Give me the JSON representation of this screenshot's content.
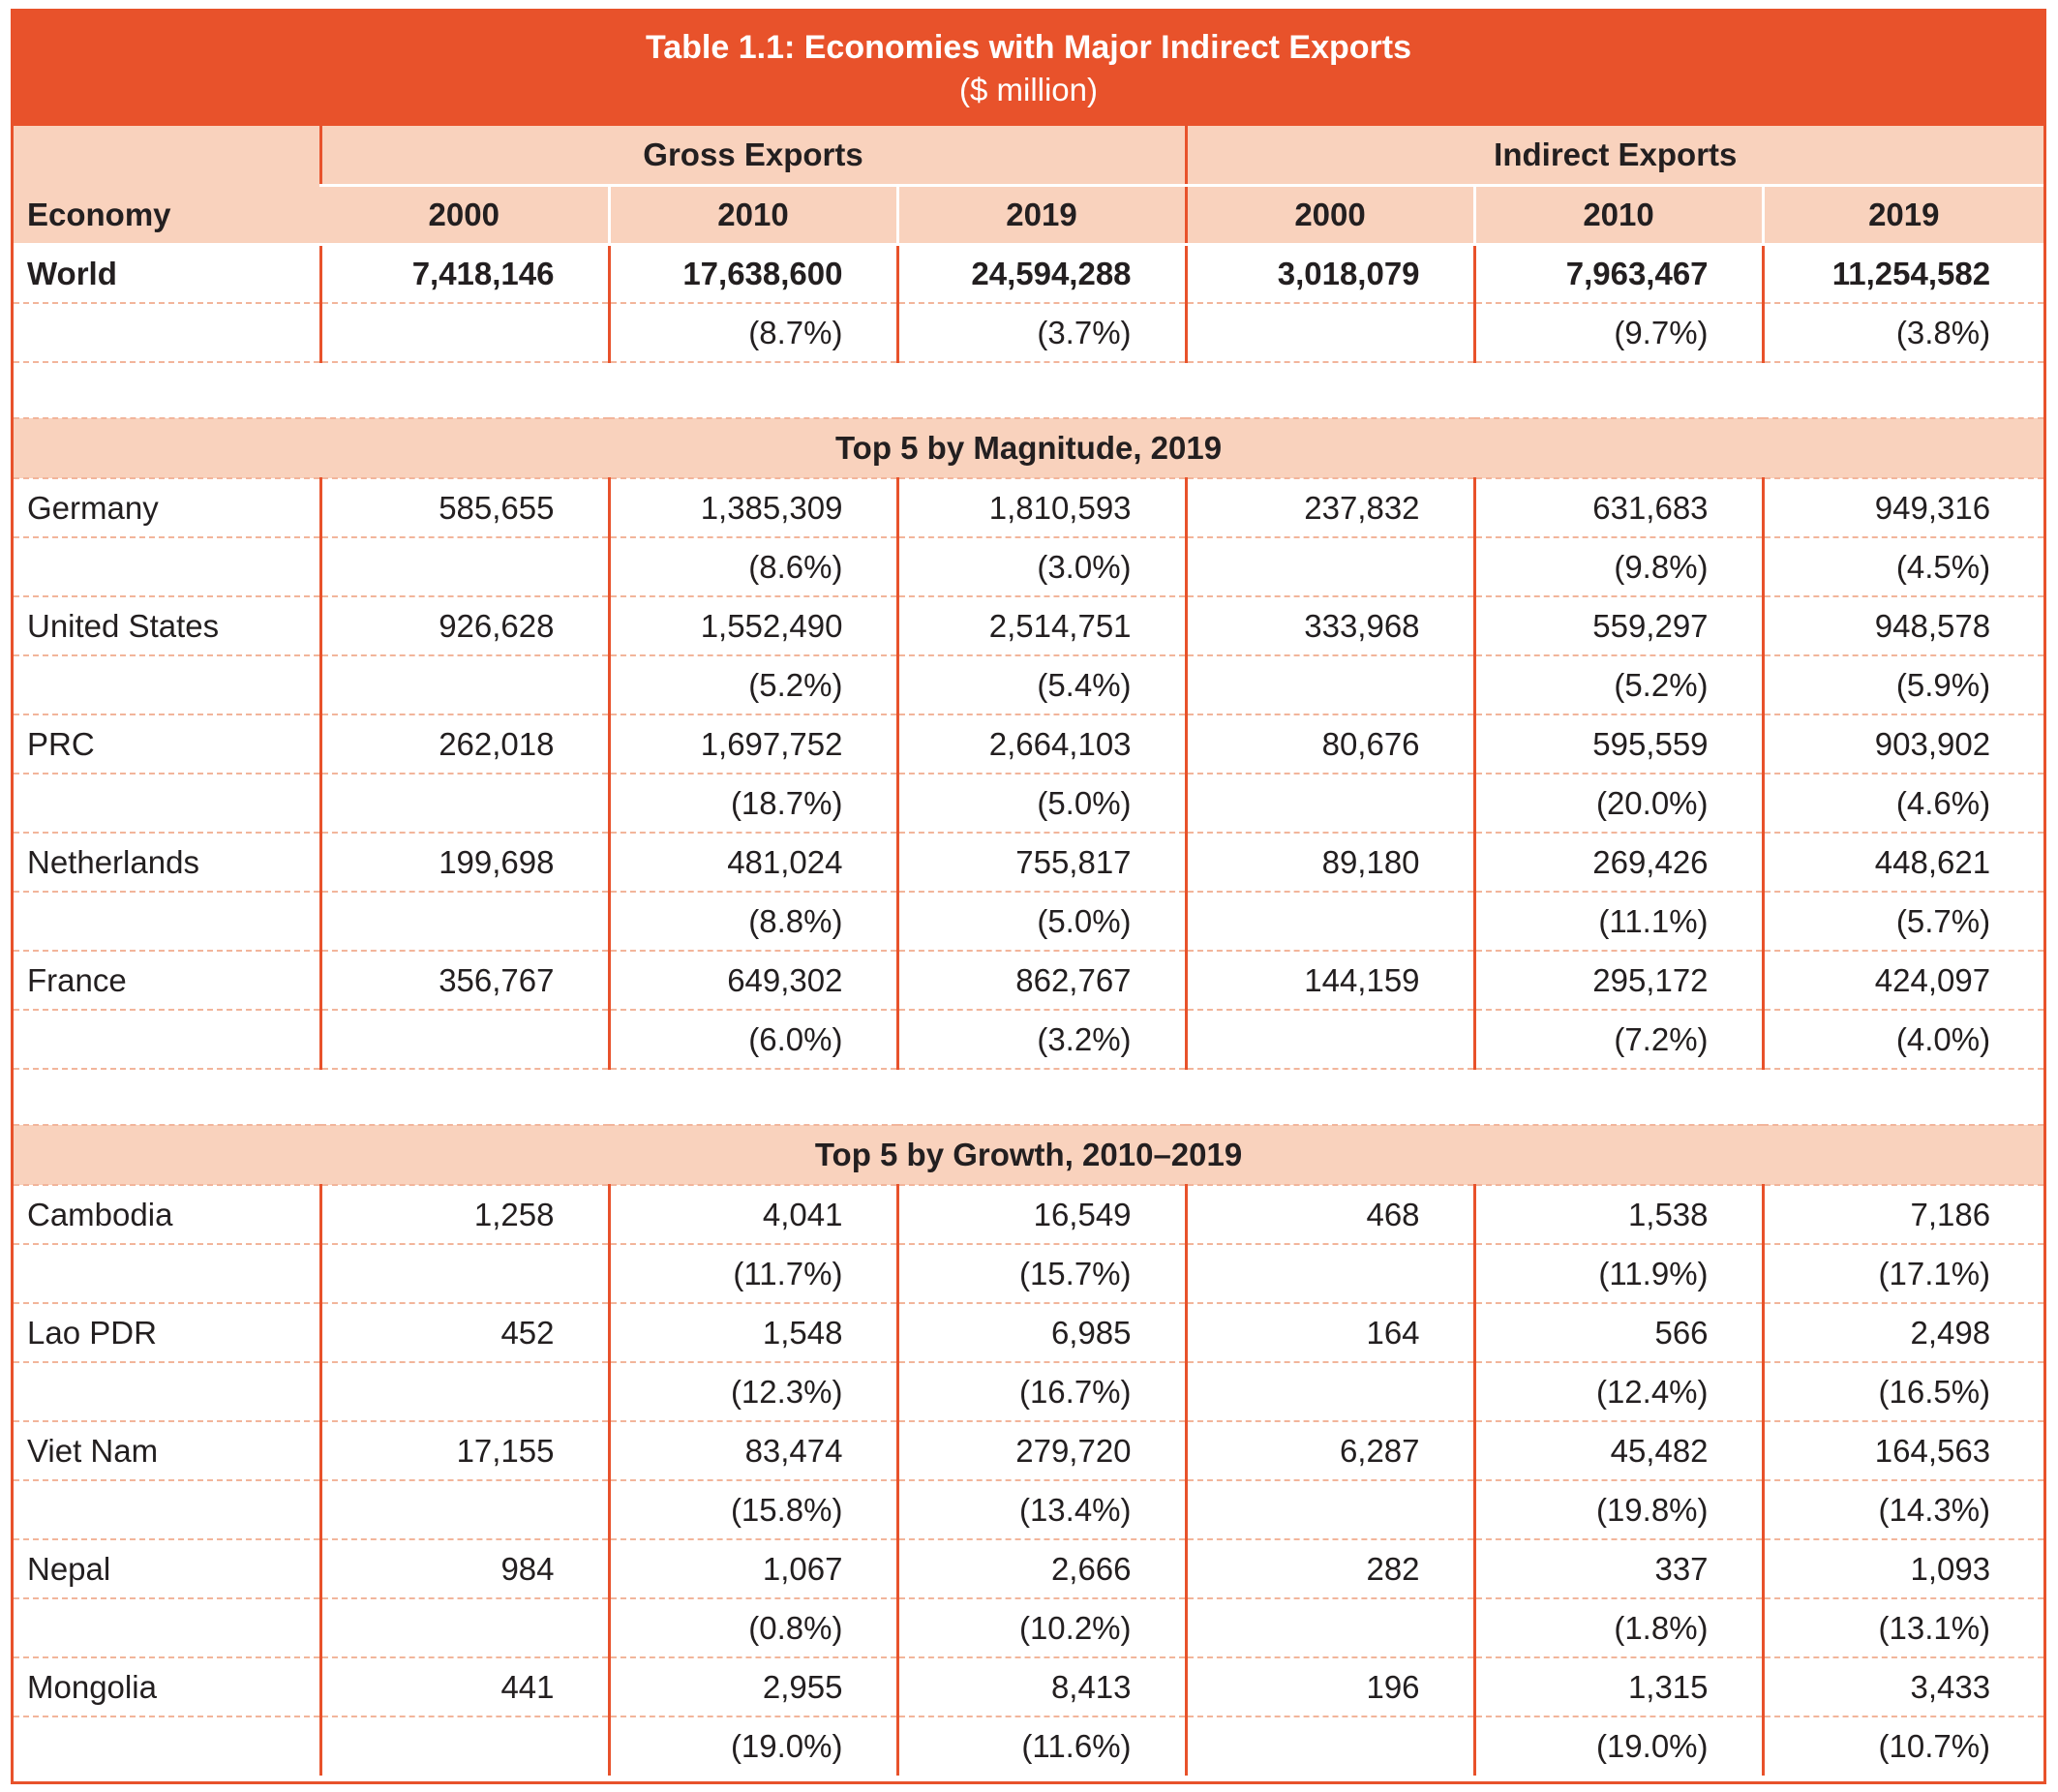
{
  "title": "Table 1.1: Economies with Major Indirect Exports",
  "subtitle": "($ million)",
  "headers": {
    "economy": "Economy",
    "group_gross": "Gross Exports",
    "group_indirect": "Indirect Exports",
    "years": [
      "2000",
      "2010",
      "2019",
      "2000",
      "2010",
      "2019"
    ]
  },
  "world": {
    "name": "World",
    "values": [
      "7,418,146",
      "17,638,600",
      "24,594,288",
      "3,018,079",
      "7,963,467",
      "11,254,582"
    ],
    "growth": [
      "",
      "(8.7%)",
      "(3.7%)",
      "",
      "(9.7%)",
      "(3.8%)"
    ]
  },
  "sections": [
    {
      "title": "Top 5 by Magnitude, 2019",
      "rows": [
        {
          "name": "Germany",
          "values": [
            "585,655",
            "1,385,309",
            "1,810,593",
            "237,832",
            "631,683",
            "949,316"
          ],
          "growth": [
            "",
            "(8.6%)",
            "(3.0%)",
            "",
            "(9.8%)",
            "(4.5%)"
          ]
        },
        {
          "name": "United States",
          "values": [
            "926,628",
            "1,552,490",
            "2,514,751",
            "333,968",
            "559,297",
            "948,578"
          ],
          "growth": [
            "",
            "(5.2%)",
            "(5.4%)",
            "",
            "(5.2%)",
            "(5.9%)"
          ]
        },
        {
          "name": "PRC",
          "values": [
            "262,018",
            "1,697,752",
            "2,664,103",
            "80,676",
            "595,559",
            "903,902"
          ],
          "growth": [
            "",
            "(18.7%)",
            "(5.0%)",
            "",
            "(20.0%)",
            "(4.6%)"
          ]
        },
        {
          "name": "Netherlands",
          "values": [
            "199,698",
            "481,024",
            "755,817",
            "89,180",
            "269,426",
            "448,621"
          ],
          "growth": [
            "",
            "(8.8%)",
            "(5.0%)",
            "",
            "(11.1%)",
            "(5.7%)"
          ]
        },
        {
          "name": "France",
          "values": [
            "356,767",
            "649,302",
            "862,767",
            "144,159",
            "295,172",
            "424,097"
          ],
          "growth": [
            "",
            "(6.0%)",
            "(3.2%)",
            "",
            "(7.2%)",
            "(4.0%)"
          ]
        }
      ]
    },
    {
      "title": "Top 5 by Growth, 2010–2019",
      "rows": [
        {
          "name": "Cambodia",
          "values": [
            "1,258",
            "4,041",
            "16,549",
            "468",
            "1,538",
            "7,186"
          ],
          "growth": [
            "",
            "(11.7%)",
            "(15.7%)",
            "",
            "(11.9%)",
            "(17.1%)"
          ]
        },
        {
          "name": "Lao PDR",
          "values": [
            "452",
            "1,548",
            "6,985",
            "164",
            "566",
            "2,498"
          ],
          "growth": [
            "",
            "(12.3%)",
            "(16.7%)",
            "",
            "(12.4%)",
            "(16.5%)"
          ]
        },
        {
          "name": "Viet Nam",
          "values": [
            "17,155",
            "83,474",
            "279,720",
            "6,287",
            "45,482",
            "164,563"
          ],
          "growth": [
            "",
            "(15.8%)",
            "(13.4%)",
            "",
            "(19.8%)",
            "(14.3%)"
          ]
        },
        {
          "name": "Nepal",
          "values": [
            "984",
            "1,067",
            "2,666",
            "282",
            "337",
            "1,093"
          ],
          "growth": [
            "",
            "(0.8%)",
            "(10.2%)",
            "",
            "(1.8%)",
            "(13.1%)"
          ]
        },
        {
          "name": "Mongolia",
          "values": [
            "441",
            "2,955",
            "8,413",
            "196",
            "1,315",
            "3,433"
          ],
          "growth": [
            "",
            "(19.0%)",
            "(11.6%)",
            "",
            "(19.0%)",
            "(10.7%)"
          ]
        }
      ]
    }
  ]
}
